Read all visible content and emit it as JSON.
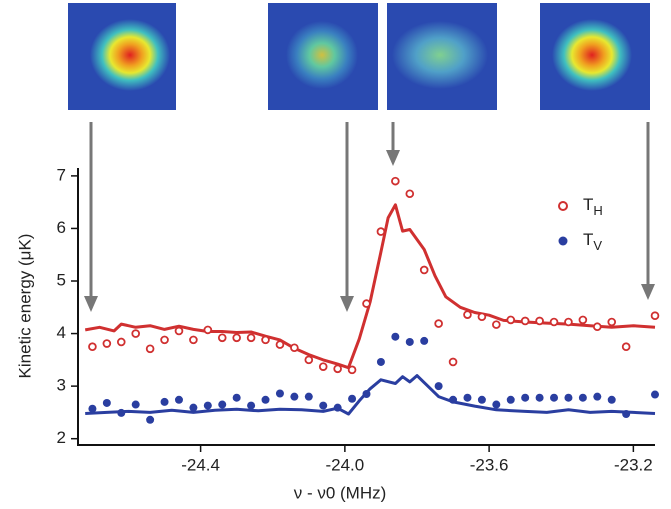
{
  "chart_data": {
    "type": "scatter",
    "x_label": "ν - ν0  (MHz)",
    "y_label": "Kinetic energy (μK)",
    "xlim": [
      -24.74,
      -23.14
    ],
    "ylim": [
      1.88,
      7.15
    ],
    "xticks": [
      -24.4,
      {
        "value": -24.0,
        "label": "-24.0"
      },
      -23.6,
      -23.2
    ],
    "yticks": [
      2,
      3,
      4,
      5,
      6,
      7
    ],
    "legend": "upper right",
    "series": [
      {
        "name": "TH",
        "color": "#d03030",
        "marker": "open",
        "x": [
          -24.7,
          -24.66,
          -24.62,
          -24.58,
          -24.54,
          -24.5,
          -24.46,
          -24.42,
          -24.38,
          -24.34,
          -24.3,
          -24.26,
          -24.22,
          -24.18,
          -24.14,
          -24.1,
          -24.06,
          -24.02,
          -23.98,
          -23.94,
          -23.9,
          -23.86,
          -23.82,
          -23.78,
          -23.74,
          -23.7,
          -23.66,
          -23.62,
          -23.58,
          -23.54,
          -23.5,
          -23.46,
          -23.42,
          -23.38,
          -23.34,
          -23.3,
          -23.26,
          -23.22,
          -23.14
        ],
        "values": [
          3.75,
          3.81,
          3.84,
          4.0,
          3.71,
          3.88,
          4.05,
          3.88,
          4.07,
          3.92,
          3.92,
          3.92,
          3.88,
          3.79,
          3.73,
          3.5,
          3.37,
          3.33,
          3.31,
          4.57,
          5.94,
          6.9,
          6.66,
          5.21,
          4.19,
          3.46,
          4.36,
          4.32,
          4.17,
          4.26,
          4.24,
          4.24,
          4.22,
          4.22,
          4.26,
          4.13,
          4.22,
          3.75,
          4.34
        ]
      },
      {
        "name": "TV",
        "color": "#2a3ea0",
        "marker": "filled",
        "x": [
          -24.7,
          -24.66,
          -24.62,
          -24.58,
          -24.54,
          -24.5,
          -24.46,
          -24.42,
          -24.38,
          -24.34,
          -24.3,
          -24.26,
          -24.22,
          -24.18,
          -24.14,
          -24.1,
          -24.06,
          -24.02,
          -23.98,
          -23.94,
          -23.9,
          -23.86,
          -23.82,
          -23.78,
          -23.74,
          -23.7,
          -23.66,
          -23.62,
          -23.58,
          -23.54,
          -23.5,
          -23.46,
          -23.42,
          -23.38,
          -23.34,
          -23.3,
          -23.26,
          -23.22,
          -23.14
        ],
        "values": [
          2.57,
          2.68,
          2.49,
          2.65,
          2.36,
          2.7,
          2.74,
          2.59,
          2.63,
          2.65,
          2.78,
          2.63,
          2.74,
          2.86,
          2.8,
          2.8,
          2.63,
          2.59,
          2.76,
          2.85,
          3.46,
          3.94,
          3.84,
          3.86,
          3.0,
          2.74,
          2.78,
          2.74,
          2.65,
          2.74,
          2.78,
          2.78,
          2.78,
          2.78,
          2.78,
          2.8,
          2.74,
          2.47,
          2.84
        ]
      }
    ],
    "lines": [
      {
        "color": "#d03030",
        "x": [
          -24.72,
          -24.68,
          -24.64,
          -24.62,
          -24.58,
          -24.54,
          -24.5,
          -24.46,
          -24.42,
          -24.38,
          -24.34,
          -24.3,
          -24.26,
          -24.22,
          -24.18,
          -24.14,
          -24.1,
          -24.06,
          -24.02,
          -23.99,
          -23.96,
          -23.93,
          -23.9,
          -23.88,
          -23.86,
          -23.84,
          -23.82,
          -23.78,
          -23.75,
          -23.72,
          -23.68,
          -23.64,
          -23.6,
          -23.56,
          -23.5,
          -23.44,
          -23.38,
          -23.32,
          -23.26,
          -23.2,
          -23.14
        ],
        "values": [
          4.07,
          4.12,
          4.05,
          4.18,
          4.12,
          4.15,
          4.08,
          4.14,
          4.08,
          4.04,
          4.04,
          4.02,
          4.03,
          3.95,
          3.88,
          3.72,
          3.6,
          3.5,
          3.42,
          3.35,
          3.9,
          4.6,
          5.55,
          6.2,
          6.45,
          5.95,
          5.98,
          5.6,
          5.1,
          4.7,
          4.5,
          4.4,
          4.35,
          4.25,
          4.22,
          4.2,
          4.18,
          4.15,
          4.12,
          4.15,
          4.12
        ]
      },
      {
        "color": "#2a3ea0",
        "x": [
          -24.72,
          -24.66,
          -24.6,
          -24.54,
          -24.48,
          -24.42,
          -24.36,
          -24.3,
          -24.24,
          -24.18,
          -24.12,
          -24.06,
          -24.02,
          -23.99,
          -23.96,
          -23.93,
          -23.9,
          -23.86,
          -23.84,
          -23.82,
          -23.8,
          -23.77,
          -23.74,
          -23.7,
          -23.64,
          -23.58,
          -23.5,
          -23.44,
          -23.38,
          -23.32,
          -23.26,
          -23.2,
          -23.14
        ],
        "values": [
          2.48,
          2.5,
          2.52,
          2.5,
          2.54,
          2.5,
          2.54,
          2.56,
          2.53,
          2.56,
          2.55,
          2.52,
          2.58,
          2.47,
          2.72,
          2.95,
          3.12,
          3.05,
          3.18,
          3.08,
          3.2,
          3.0,
          2.8,
          2.7,
          2.62,
          2.55,
          2.52,
          2.5,
          2.55,
          2.5,
          2.52,
          2.5,
          2.48
        ]
      }
    ]
  }
}
